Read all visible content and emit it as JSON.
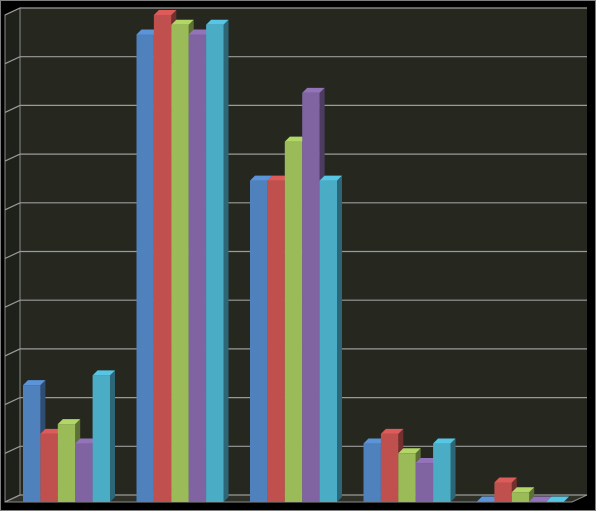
{
  "chart_data": {
    "type": "bar3d",
    "categories": [
      null,
      null,
      null,
      null,
      null
    ],
    "series": [
      {
        "color": "#4f81bd",
        "values": [
          2.4,
          9.6,
          6.6,
          1.2,
          0
        ]
      },
      {
        "color": "#c0504d",
        "values": [
          1.4,
          10,
          6.6,
          1.4,
          0.4
        ]
      },
      {
        "color": "#9bbb59",
        "values": [
          1.6,
          9.8,
          7.4,
          1.0,
          0.2
        ]
      },
      {
        "color": "#8064a2",
        "values": [
          1.2,
          9.6,
          8.4,
          0.8,
          0
        ]
      },
      {
        "color": "#4bacc6",
        "values": [
          2.6,
          9.8,
          6.6,
          1.2,
          0
        ]
      }
    ],
    "ylim": [
      0,
      10
    ],
    "yticks": [
      0,
      1,
      2,
      3,
      4,
      5,
      6,
      7,
      8,
      9,
      10
    ],
    "grid": true
  }
}
